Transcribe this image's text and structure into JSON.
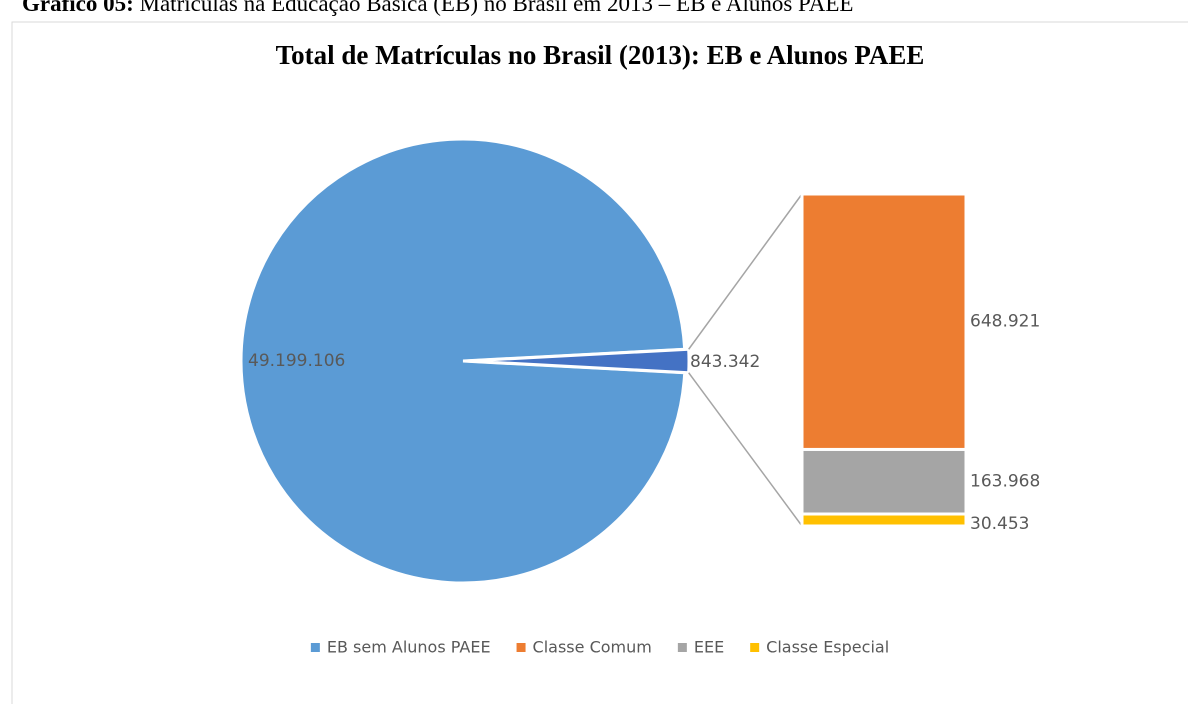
{
  "chart_data": {
    "type": "bar-of-pie",
    "caption_label": "Gráfico 05:",
    "caption": "Matrículas na Educação Básica (EB) no Brasil em 2013 – EB e Alunos PAEE",
    "title": "Total de Matrículas no Brasil (2013): EB e Alunos PAEE",
    "pie": {
      "categories": [
        "EB sem Alunos PAEE",
        null
      ],
      "values": [
        49199106,
        843342
      ],
      "value_labels": [
        "49.199.106",
        "843.342"
      ],
      "colors": [
        "#5b9bd5",
        "#4472c4"
      ]
    },
    "bar": {
      "categories": [
        "Classe Comum",
        "EEE",
        "Classe Especial"
      ],
      "values": [
        648921,
        163968,
        30453
      ],
      "value_labels": [
        "648.921",
        "163.968",
        "30.453"
      ],
      "colors": [
        "#ed7d31",
        "#a5a5a5",
        "#ffc000"
      ]
    }
  }
}
